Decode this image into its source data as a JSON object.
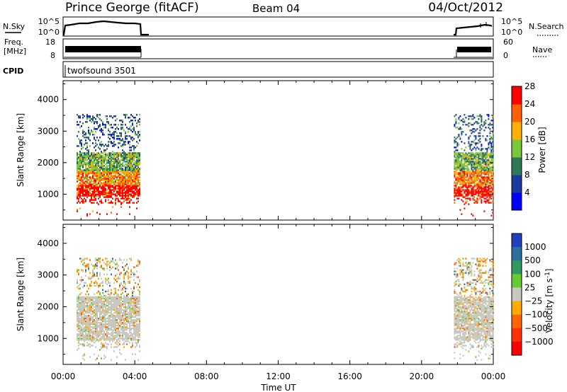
{
  "header": {
    "station": "Prince George (fitACF)",
    "beam": "Beam 04",
    "date": "04/Oct/2012"
  },
  "strips": {
    "nsky_label": "N.Sky",
    "nsearch_label": "N.Search",
    "noise_ticks": [
      "10^5",
      "10^0"
    ],
    "freq_label": "Freq.",
    "freq_unit": "[MHz]",
    "freq_ticks": [
      "18",
      "8"
    ],
    "nave_label": "Nave",
    "nave_ticks": [
      "60",
      "0"
    ],
    "cpid_label": "CPID",
    "cpid_value": "twofsound 3501"
  },
  "chart_data": [
    {
      "type": "heatmap",
      "name": "power",
      "ylabel": "Slant Range [km]",
      "ylim": [
        180,
        4600
      ],
      "yticks": [
        1000,
        2000,
        3000,
        4000
      ],
      "xlim": [
        0,
        24
      ],
      "colorbar": {
        "label": "Power [dB]",
        "ticks": [
          "4",
          "8",
          "12",
          "16",
          "20",
          "24",
          "28"
        ],
        "colors": [
          "#0000ff",
          "#1a3ca0",
          "#2e7a58",
          "#7ac83a",
          "#ffb000",
          "#ff6000",
          "#ff0000"
        ]
      },
      "data_intervals_hours": [
        [
          0.75,
          4.25
        ],
        [
          21.8,
          24
        ]
      ],
      "range_bands_km": [
        {
          "from": 900,
          "to": 1250,
          "level": "28+"
        },
        {
          "from": 1250,
          "to": 1700,
          "level": "20-28"
        },
        {
          "from": 1700,
          "to": 2300,
          "level": "12-20"
        },
        {
          "from": 2300,
          "to": 3500,
          "level": "4-12"
        }
      ]
    },
    {
      "type": "heatmap",
      "name": "velocity",
      "ylabel": "Slant Range [km]",
      "ylim": [
        180,
        4600
      ],
      "yticks": [
        1000,
        2000,
        3000,
        4000
      ],
      "xlim": [
        0,
        24
      ],
      "xticks": [
        "00:00",
        "04:00",
        "08:00",
        "12:00",
        "16:00",
        "20:00",
        "00:00"
      ],
      "xlabel": "Time UT",
      "colorbar": {
        "label": "Velocity [m s",
        "label_sup": "-1",
        "label_end": "]",
        "ticks": [
          "1000",
          "500",
          "100",
          "25",
          "−25",
          "−100",
          "−500",
          "−1000"
        ],
        "colors": [
          "#1f3fbf",
          "#2e6fa0",
          "#2e9a60",
          "#66cc33",
          "#c8c8c0",
          "#ffaa00",
          "#ff6600",
          "#ff3300",
          "#ff0000"
        ]
      },
      "data_intervals_hours": [
        [
          0.75,
          4.25
        ],
        [
          21.8,
          24
        ]
      ],
      "range_bands_km": [
        {
          "from": 700,
          "to": 2300,
          "level": "-25 to 25"
        },
        {
          "from": 2300,
          "to": 3500,
          "level": "mixed"
        }
      ]
    }
  ]
}
